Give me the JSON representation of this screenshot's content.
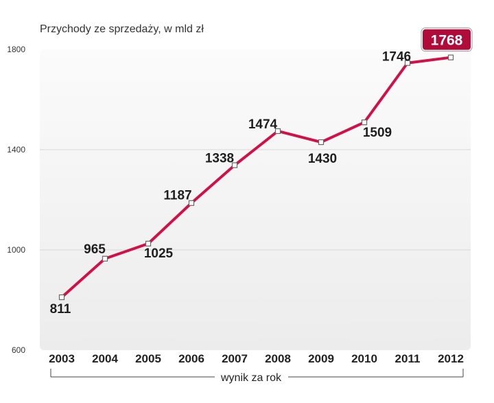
{
  "chart_data": {
    "type": "line",
    "title": "Przychody ze sprzedaży, w mld zł",
    "xlabel": "wynik za rok",
    "ylabel": "",
    "ylim": [
      600,
      1800
    ],
    "yticks": [
      600,
      1000,
      1400,
      1800
    ],
    "grid": true,
    "categories": [
      "2003",
      "2004",
      "2005",
      "2006",
      "2007",
      "2008",
      "2009",
      "2010",
      "2011",
      "2012"
    ],
    "series": [
      {
        "name": "Przychody ze sprzedaży",
        "values": [
          811,
          965,
          1025,
          1187,
          1338,
          1474,
          1430,
          1509,
          1746,
          1768
        ]
      }
    ],
    "highlight": {
      "category": "2012",
      "value": 1768
    }
  },
  "colors": {
    "line": "#d11048",
    "highlight_bg": "#b00c3a",
    "grid": "#d8d8d8",
    "plot_bg_top": "#fbfbfb",
    "plot_bg_bottom": "#ececec"
  }
}
